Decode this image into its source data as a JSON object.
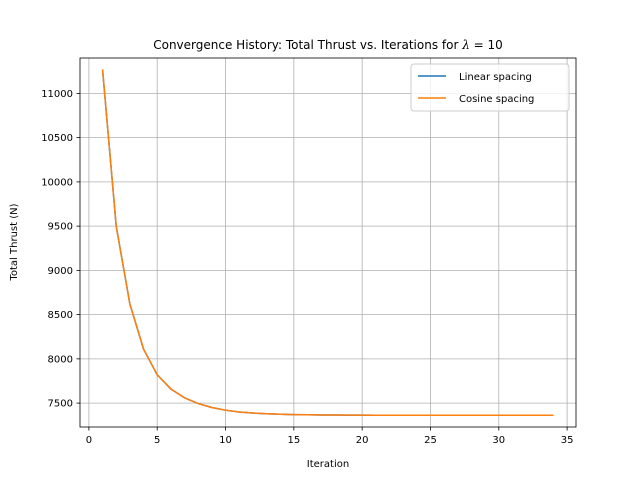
{
  "chart_data": {
    "type": "line",
    "title": "Convergence History: Total Thrust vs. Iterations for λ = 10",
    "title_main": "Convergence History: Total Thrust vs. Iterations for ",
    "title_symbol": "λ",
    "title_value": " = 10",
    "xlabel": "Iteration",
    "ylabel": "Total Thrust (N)",
    "xlim": [
      -0.65,
      35.65
    ],
    "ylim": [
      7230,
      11400
    ],
    "xticks": [
      0,
      5,
      10,
      15,
      20,
      25,
      30,
      35
    ],
    "yticks": [
      7500,
      8000,
      8500,
      9000,
      9500,
      10000,
      10500,
      11000
    ],
    "grid": true,
    "legend_position": "top-right",
    "series": [
      {
        "name": "Linear spacing",
        "color": "#1f77b4",
        "x": [
          1,
          2,
          3,
          4,
          5,
          6,
          7,
          8,
          9,
          10,
          11,
          12,
          13,
          14,
          15,
          16,
          17,
          18,
          19,
          20,
          21,
          22,
          23,
          24,
          25,
          26,
          27,
          28,
          29,
          30,
          31,
          32,
          33
        ],
        "y": [
          11270,
          9500,
          8620,
          8110,
          7820,
          7660,
          7560,
          7495,
          7450,
          7420,
          7400,
          7388,
          7380,
          7374,
          7370,
          7368,
          7366,
          7365,
          7364,
          7364,
          7363,
          7363,
          7363,
          7363,
          7363,
          7363,
          7363,
          7363,
          7363,
          7363,
          7363,
          7363,
          7363
        ]
      },
      {
        "name": "Cosine spacing",
        "color": "#ff7f0e",
        "x": [
          1,
          2,
          3,
          4,
          5,
          6,
          7,
          8,
          9,
          10,
          11,
          12,
          13,
          14,
          15,
          16,
          17,
          18,
          19,
          20,
          21,
          22,
          23,
          24,
          25,
          26,
          27,
          28,
          29,
          30,
          31,
          32,
          33,
          34
        ],
        "y": [
          11270,
          9500,
          8620,
          8110,
          7820,
          7660,
          7560,
          7495,
          7450,
          7420,
          7400,
          7388,
          7380,
          7374,
          7370,
          7368,
          7366,
          7365,
          7364,
          7364,
          7363,
          7363,
          7363,
          7363,
          7363,
          7363,
          7363,
          7363,
          7363,
          7363,
          7363,
          7363,
          7363,
          7363
        ]
      }
    ]
  }
}
